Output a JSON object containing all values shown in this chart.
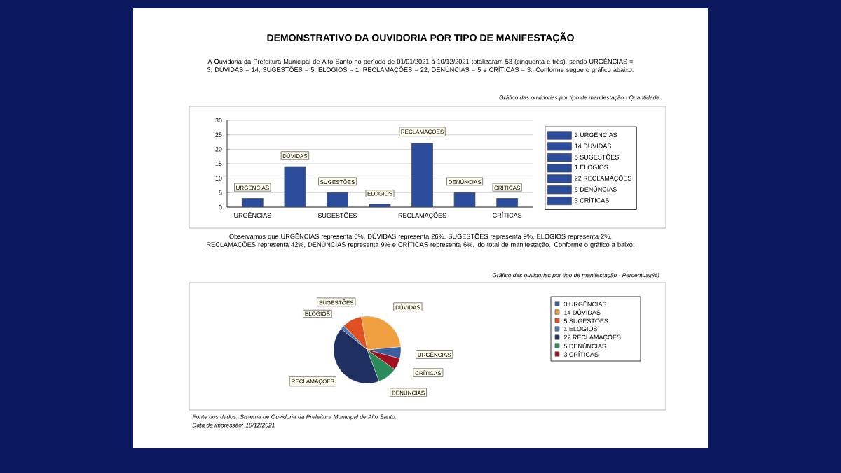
{
  "chart_data": [
    {
      "type": "bar",
      "title": "DEMONSTRATIVO DA OUVIDORIA POR TIPO DE MANIFESTAÇÃO",
      "subtitle": "Gráfico das ouvidorias por tipo de manifestação - Quantidade",
      "annotations": [
        "A Ouvidoria da Prefeitura Municipal de Alto Santo no período de 01/01/2021 à 10/12/2021 totalizaram 53 (cinquenta e três), sendo  URGÊNCIAS = 3, DÚVIDAS = 14, SUGESTÕES = 5, ELOGIOS = 1, RECLAMAÇÕES = 22, DENÚNCIAS = 5 e CRÍTICAS = 3. Conforme segue o gráfico abaixo:"
      ],
      "categories": [
        "URGÊNCIAS",
        null,
        "SUGESTÕES",
        null,
        "RECLAMAÇÕES",
        null,
        "CRÍTICAS"
      ],
      "series": [
        {
          "name": "3 URGÊNCIAS",
          "color": "#2c4c9c",
          "values": [
            3,
            null,
            null,
            null,
            null,
            null,
            null
          ],
          "value_labels": [
            "URGÊNCIAS",
            null,
            null,
            null,
            null,
            null,
            null
          ]
        },
        {
          "name": "14 DÚVIDAS",
          "color": "#2c4c9c",
          "values": [
            null,
            14,
            null,
            null,
            null,
            null,
            null
          ],
          "value_labels": [
            null,
            "DÚVIDAS",
            null,
            null,
            null,
            null,
            null
          ]
        },
        {
          "name": "5 SUGESTÕES",
          "color": "#2c4c9c",
          "values": [
            null,
            null,
            5,
            null,
            null,
            null,
            null
          ],
          "value_labels": [
            null,
            null,
            "SUGESTÕES",
            null,
            null,
            null,
            null
          ]
        },
        {
          "name": "1 ELOGIOS",
          "color": "#2c4c9c",
          "values": [
            null,
            null,
            null,
            1,
            null,
            null,
            null
          ],
          "value_labels": [
            null,
            null,
            null,
            "ELOGIOS",
            null,
            null,
            null
          ]
        },
        {
          "name": "22 RECLAMAÇÕES",
          "color": "#2c4c9c",
          "values": [
            null,
            null,
            null,
            null,
            22,
            null,
            null
          ],
          "value_labels": [
            null,
            null,
            null,
            null,
            "RECLAMAÇÕES",
            null,
            null
          ]
        },
        {
          "name": "5 DENÚNCIAS",
          "color": "#2c4c9c",
          "values": [
            null,
            null,
            null,
            null,
            null,
            5,
            null
          ],
          "value_labels": [
            null,
            null,
            null,
            null,
            null,
            "DENÚNCIAS",
            null
          ]
        },
        {
          "name": "3 CRÍTICAS",
          "color": "#2c4c9c",
          "values": [
            null,
            null,
            null,
            null,
            null,
            null,
            3
          ],
          "value_labels": [
            null,
            null,
            null,
            null,
            null,
            null,
            "CRÍTICAS"
          ]
        }
      ],
      "ylim": [
        0,
        30
      ],
      "yticks": [
        0,
        5,
        10,
        15,
        20,
        25,
        30
      ],
      "grid": "y",
      "legend": "right"
    },
    {
      "type": "pie",
      "subtitle": "Gráfico das ouvidorias por tipo de manifestação - Percentual(%)",
      "annotations": [
        "Observamos que  URGÊNCIAS representa 6%, DÚVIDAS representa 26%, SUGESTÕES representa 9%, ELOGIOS representa 2%, RECLAMAÇÕES representa 42%, DENÚNCIAS representa 9% e CRÍTICAS representa 6%.  do total de manifestação. Conforme o gráfico a baixo:",
        "Fonte dos dados: Sistema de Ouvidoria da Prefeitura Municipal de Alto Santo.",
        "Data da impressão: 10/12/2021"
      ],
      "categories": [
        "URGÊNCIAS",
        "DÚVIDAS",
        "SUGESTÕES",
        "ELOGIOS",
        "RECLAMAÇÕES",
        "DENÚNCIAS",
        "CRÍTICAS"
      ],
      "values": [
        3,
        14,
        5,
        1,
        22,
        5,
        3
      ],
      "value_labels": [
        "3",
        "14",
        "5",
        "1",
        "22",
        "5",
        "3"
      ],
      "colors": [
        "#3a5ea0",
        "#f0a040",
        "#e05020",
        "#4a7ab0",
        "#1e2f60",
        "#2a8a5a",
        "#a01020"
      ],
      "legend": "right"
    }
  ]
}
